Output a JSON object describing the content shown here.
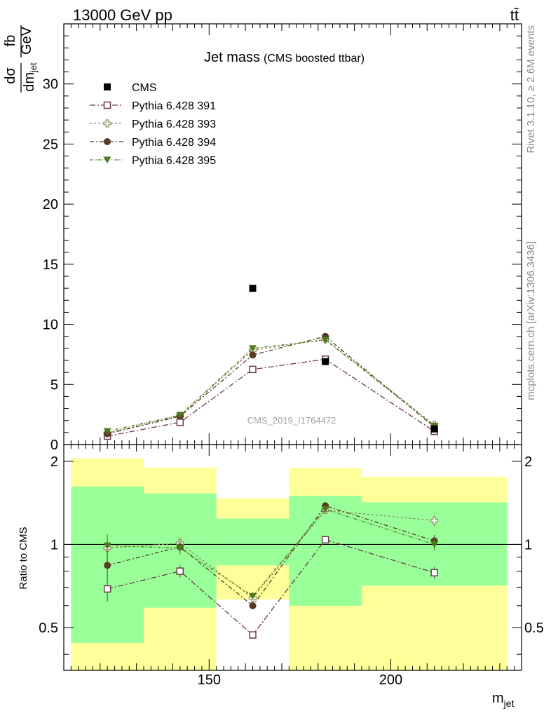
{
  "header": {
    "energy_label": "13000 GeV pp",
    "process_label": "tt̄"
  },
  "side_labels": {
    "rivet": "Rivet 3.1.10, ≥ 2.6M events",
    "mcplots": "mcplots.cern.ch [arXiv:1306.3436]"
  },
  "colors": {
    "cms": "#000000",
    "p391": "#6a3a4a",
    "p393": "#8c8a5a",
    "p394": "#5a3a22",
    "p395": "#4a7a1a",
    "band_green": "#99ff99",
    "band_yellow": "#ffff99"
  },
  "chart_data": [
    {
      "type": "scatter",
      "title": "Jet mass",
      "subtitle": "(CMS boosted ttbar)",
      "ylabel_num": "dσ",
      "ylabel_den": "dm_jet",
      "yunit_num": "fb",
      "yunit_den": "GeV",
      "watermark": "CMS_2019_I1764472",
      "xlim": [
        110,
        236
      ],
      "ylim": [
        0,
        35
      ],
      "yticks": [
        0,
        5,
        10,
        15,
        20,
        25,
        30
      ],
      "legend_position": "top-left",
      "series": [
        {
          "name": "CMS",
          "key": "cms",
          "marker": "square-filled",
          "x": [
            162,
            182,
            212
          ],
          "y": [
            13.0,
            6.9,
            1.3
          ]
        },
        {
          "name": "Pythia 6.428 391",
          "key": "p391",
          "marker": "square-open",
          "x": [
            122,
            142,
            162,
            182,
            212
          ],
          "y": [
            0.7,
            1.85,
            6.25,
            7.1,
            1.1
          ]
        },
        {
          "name": "Pythia 6.428 393",
          "key": "p393",
          "marker": "cross-open",
          "x": [
            122,
            142,
            162,
            182,
            212
          ],
          "y": [
            0.95,
            2.4,
            7.85,
            8.75,
            1.65
          ]
        },
        {
          "name": "Pythia 6.428 394",
          "key": "p394",
          "marker": "circle-filled",
          "x": [
            122,
            142,
            162,
            182,
            212
          ],
          "y": [
            0.9,
            2.35,
            7.45,
            9.0,
            1.45
          ]
        },
        {
          "name": "Pythia 6.428 395",
          "key": "p395",
          "marker": "triangle-down-filled",
          "x": [
            122,
            142,
            162,
            182,
            212
          ],
          "y": [
            1.1,
            2.45,
            8.0,
            8.7,
            1.55
          ]
        }
      ]
    },
    {
      "type": "scatter",
      "ylabel": "Ratio to CMS",
      "xlabel": "m_jet",
      "xlim": [
        110,
        236
      ],
      "ylim": [
        0.35,
        2.3
      ],
      "yscale": "log",
      "yticks": [
        0.5,
        1,
        2
      ],
      "ytick_labels": [
        "0.5",
        "1",
        "2"
      ],
      "xticks": [
        150,
        200
      ],
      "xtick_labels": [
        "150",
        "200"
      ],
      "bands": [
        {
          "x0": 112,
          "x1": 132,
          "green": [
            0.44,
            1.62
          ],
          "yellow": [
            0.35,
            2.05
          ]
        },
        {
          "x0": 132,
          "x1": 152,
          "green": [
            0.59,
            1.53
          ],
          "yellow": [
            0.35,
            1.9
          ]
        },
        {
          "x0": 152,
          "x1": 172,
          "green": [
            0.63,
            1.24
          ],
          "yellow": [
            0.35,
            1.47
          ]
        },
        {
          "x0": 172,
          "x1": 192,
          "green": [
            0.6,
            1.5
          ],
          "yellow": [
            0.35,
            1.89
          ]
        },
        {
          "x0": 192,
          "x1": 232,
          "green": [
            0.71,
            1.42
          ],
          "yellow": [
            0.35,
            1.76
          ]
        }
      ],
      "series": [
        {
          "name": "Pythia 6.428 391",
          "key": "p391",
          "marker": "square-open",
          "x": [
            122,
            142,
            162,
            182,
            212
          ],
          "y": [
            0.69,
            0.8,
            0.47,
            1.04,
            0.79
          ]
        },
        {
          "name": "Pythia 6.428 393",
          "key": "p393",
          "marker": "cross-open",
          "x": [
            122,
            142,
            162,
            182,
            212
          ],
          "y": [
            0.97,
            1.01,
            0.64,
            1.33,
            1.22
          ]
        },
        {
          "name": "Pythia 6.428 394",
          "key": "p394",
          "marker": "circle-filled",
          "x": [
            122,
            142,
            162,
            182,
            212
          ],
          "y": [
            0.84,
            0.98,
            0.6,
            1.38,
            1.03
          ]
        },
        {
          "name": "Pythia 6.428 395",
          "key": "p395",
          "marker": "triangle-down-filled",
          "x": [
            122,
            142,
            162,
            182,
            212
          ],
          "y": [
            0.99,
            0.97,
            0.65,
            1.34,
            1.0
          ]
        }
      ]
    }
  ]
}
